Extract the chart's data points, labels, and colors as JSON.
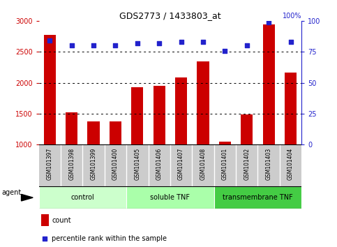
{
  "title": "GDS2773 / 1433803_at",
  "samples": [
    "GSM101397",
    "GSM101398",
    "GSM101399",
    "GSM101400",
    "GSM101405",
    "GSM101406",
    "GSM101407",
    "GSM101408",
    "GSM101401",
    "GSM101402",
    "GSM101403",
    "GSM101404"
  ],
  "counts": [
    2780,
    1520,
    1370,
    1370,
    1930,
    1950,
    2090,
    2340,
    1050,
    1490,
    2950,
    2170
  ],
  "percentiles": [
    84,
    80,
    80,
    80,
    82,
    82,
    83,
    83,
    76,
    80,
    99,
    83
  ],
  "ylim_left": [
    1000,
    3000
  ],
  "ylim_right": [
    0,
    100
  ],
  "yticks_left": [
    1000,
    1500,
    2000,
    2500,
    3000
  ],
  "yticks_right": [
    0,
    25,
    50,
    75,
    100
  ],
  "bar_color": "#cc0000",
  "dot_color": "#2222cc",
  "title_color": "#000000",
  "left_tick_color": "#cc0000",
  "right_tick_color": "#2222cc",
  "groups": [
    {
      "label": "control",
      "start": 0,
      "end": 4,
      "color": "#ccffcc"
    },
    {
      "label": "soluble TNF",
      "start": 4,
      "end": 8,
      "color": "#aaffaa"
    },
    {
      "label": "transmembrane TNF",
      "start": 8,
      "end": 12,
      "color": "#44cc44"
    }
  ],
  "agent_label": "agent",
  "legend_count_label": "count",
  "legend_percentile_label": "percentile rank within the sample",
  "bar_width": 0.55,
  "plot_bg": "#ffffff",
  "tick_area_bg": "#cccccc",
  "n_samples": 12
}
